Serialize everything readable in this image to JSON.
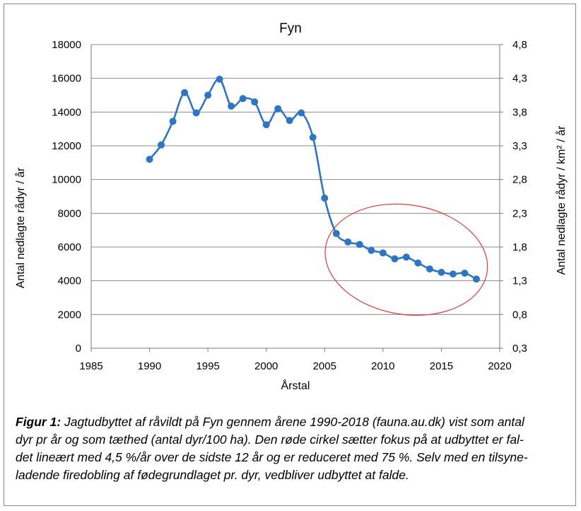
{
  "chart_data": {
    "type": "line",
    "title": "Fyn",
    "xlabel": "Årstal",
    "ylabel": "Antal nedlagte rådyr / år",
    "y2label": "Antal nedlagte rådyr / km² / år",
    "xlim": [
      1985,
      2020
    ],
    "ylim": [
      0,
      18000
    ],
    "y2lim": [
      0.3,
      4.8
    ],
    "xticks": [
      "1985",
      "1990",
      "1995",
      "2000",
      "2005",
      "2010",
      "2015",
      "2020"
    ],
    "yticks": [
      "0",
      "2000",
      "4000",
      "6000",
      "8000",
      "10000",
      "12000",
      "14000",
      "16000",
      "18000"
    ],
    "y2ticks": [
      "0,3",
      "0,8",
      "1,3",
      "1,8",
      "2,3",
      "2,8",
      "3,3",
      "3,8",
      "4,3",
      "4,8"
    ],
    "grid": true,
    "series": [
      {
        "color": "#2e75c4",
        "x": [
          1990,
          1991,
          1992,
          1993,
          1994,
          1995,
          1996,
          1997,
          1998,
          1999,
          2000,
          2001,
          2002,
          2003,
          2004,
          2005,
          2006,
          2007,
          2008,
          2009,
          2010,
          2011,
          2012,
          2013,
          2014,
          2015,
          2016,
          2017,
          2018
        ],
        "values": [
          11200,
          12050,
          13450,
          15150,
          13950,
          15000,
          15950,
          14350,
          14800,
          14600,
          13250,
          14200,
          13500,
          13950,
          12500,
          8900,
          6800,
          6300,
          6150,
          5800,
          5650,
          5300,
          5400,
          5050,
          4700,
          4500,
          4400,
          4450,
          4100
        ]
      }
    ],
    "annotation": {
      "shape": "ellipse",
      "color": "#e03a3a",
      "x_range": [
        2005,
        2019
      ],
      "y_range": [
        2000,
        8500
      ]
    }
  },
  "caption": {
    "lead": "Figur 1:",
    "lines": [
      "Jagtudbyttet af råvildt på Fyn gennem årene 1990-2018 (fauna.au.dk) vist som antal",
      "dyr pr år og som tæthed (antal dyr/100 ha). Den røde cirkel sætter fokus på at udbyttet er fal-",
      "det lineært med 4,5 %/år over de sidste 12 år og er reduceret med 75 %. Selv med en tilsyne-",
      "ladende firedobling af fødegrundlaget pr. dyr, vedbliver udbyttet at falde."
    ]
  }
}
